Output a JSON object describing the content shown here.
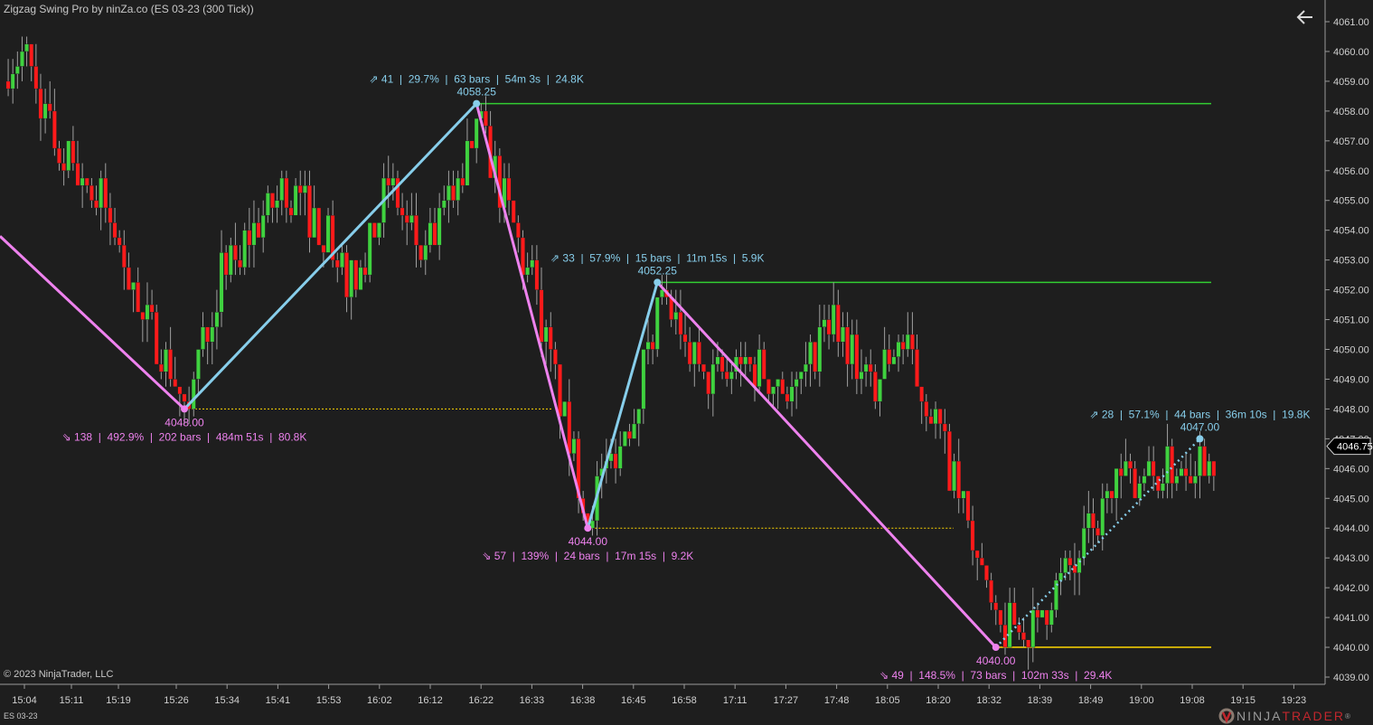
{
  "window": {
    "title": "Zigzag Swing Pro by ninZa.co (ES 03-23 (300 Tick))",
    "copyright": "© 2023 NinjaTrader, LLC",
    "instrument_tab": "ES 03-23",
    "logo": {
      "part1": "NINJA",
      "part2": "TRADER",
      "mark": "®"
    },
    "back_icon": "arrow-left-icon"
  },
  "colors": {
    "background": "#1e1e1e",
    "up_candle": "#3fd23f",
    "down_candle": "#ff1a1a",
    "wick": "#a0a0a0",
    "up_leg": "#87ceeb",
    "down_leg": "#ee82ee",
    "resistance_line": "#32cd32",
    "support_line": "#ffd700"
  },
  "chart_data": {
    "type": "candlestick",
    "title": "Zigzag Swing Pro by ninZa.co (ES 03-23 (300 Tick))",
    "ylim": [
      4039,
      4061
    ],
    "y_ticks": [
      "4039.00",
      "4040.00",
      "4041.00",
      "4042.00",
      "4043.00",
      "4044.00",
      "4045.00",
      "4046.00",
      "4047.00",
      "4048.00",
      "4049.00",
      "4050.00",
      "4051.00",
      "4052.00",
      "4053.00",
      "4054.00",
      "4055.00",
      "4056.00",
      "4057.00",
      "4058.00",
      "4059.00",
      "4060.00",
      "4061.00"
    ],
    "x_ticks": [
      "15:04",
      "15:11",
      "15:19",
      "15:26",
      "15:34",
      "15:41",
      "15:53",
      "16:02",
      "16:12",
      "16:22",
      "16:33",
      "16:38",
      "16:45",
      "16:58",
      "17:11",
      "17:27",
      "17:48",
      "18:05",
      "18:20",
      "18:32",
      "18:39",
      "18:49",
      "19:00",
      "19:08",
      "19:15",
      "19:23"
    ],
    "last_price": "4046.75",
    "swings": [
      {
        "type": "low",
        "price": "4048.00",
        "stats": "⇘ 138  |  492.9%  |  202 bars  |  484m 51s  |  80.8K",
        "bar": 38
      },
      {
        "type": "high",
        "price": "4058.25",
        "stats": "⇗ 41  |  29.7%  |  63 bars  |  54m 3s  |  24.8K",
        "bar": 101
      },
      {
        "type": "low",
        "price": "4044.00",
        "stats": "⇘ 57  |  139%  |  24 bars  |  17m 15s  |  9.2K",
        "bar": 125
      },
      {
        "type": "high",
        "price": "4052.25",
        "stats": "⇗ 33  |  57.9%  |  15 bars  |  11m 15s  |  5.9K",
        "bar": 140
      },
      {
        "type": "low",
        "price": "4040.00",
        "stats": "⇘ 49  |  148.5%  |  73 bars  |  102m 33s  |  29.4K",
        "bar": 213
      },
      {
        "type": "high",
        "price": "4047.00",
        "stats": "⇗ 28  |  57.1%  |  44 bars  |  36m 10s  |  19.8K",
        "bar": 257,
        "tentative": true
      }
    ],
    "levels": [
      {
        "price": 4058.25,
        "kind": "resistance",
        "style": "solid"
      },
      {
        "price": 4052.25,
        "kind": "resistance",
        "style": "solid"
      },
      {
        "price": 4048.0,
        "kind": "support",
        "style": "dotted"
      },
      {
        "price": 4044.0,
        "kind": "support",
        "style": "dotted"
      },
      {
        "price": 4040.0,
        "kind": "support",
        "style": "solid"
      }
    ]
  }
}
